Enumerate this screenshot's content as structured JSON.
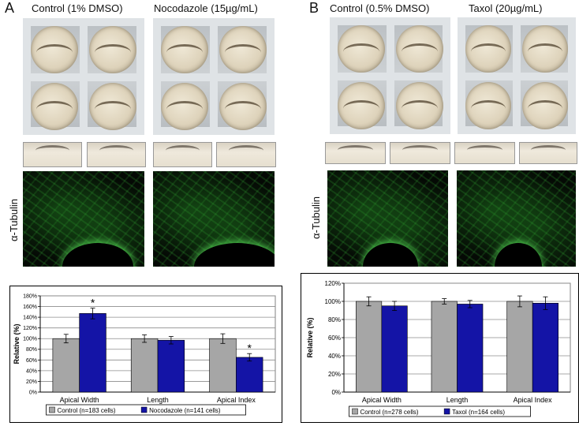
{
  "panels": [
    {
      "letter": "A",
      "conditions": [
        "Control (1% DMSO)",
        "Nocodazole (15µg/mL)"
      ],
      "stain_label": "α-Tubulin"
    },
    {
      "letter": "B",
      "conditions": [
        "Control (0.5% DMSO)",
        "Taxol (20µg/mL)"
      ],
      "stain_label": "α-Tubulin"
    }
  ],
  "chart_data": [
    {
      "type": "bar",
      "categories": [
        "Apical Width",
        "Length",
        "Apical Index"
      ],
      "series": [
        {
          "name": "Control (n=183 cells)",
          "values": [
            100,
            100,
            100
          ],
          "errors": [
            8,
            7,
            9
          ],
          "color": "#a6a6a6"
        },
        {
          "name": "Nocodazole (n=141 cells)",
          "values": [
            147,
            97,
            65
          ],
          "errors": [
            10,
            7,
            7
          ],
          "color": "#1414a6"
        }
      ],
      "significance": [
        "*",
        "",
        "*"
      ],
      "significance_series": 1,
      "ylabel": "Relative (%)",
      "ylim": [
        0,
        180
      ],
      "yticks": [
        "0%",
        "20%",
        "40%",
        "60%",
        "80%",
        "100%",
        "120%",
        "140%",
        "160%",
        "180%"
      ],
      "grid": true,
      "legend": "bottom"
    },
    {
      "type": "bar",
      "categories": [
        "Apical Width",
        "Length",
        "Apical Index"
      ],
      "series": [
        {
          "name": "Control (n=278 cells)",
          "values": [
            100,
            100,
            100
          ],
          "errors": [
            5,
            3,
            6
          ],
          "color": "#a6a6a6"
        },
        {
          "name": "Taxol (n=164 cells)",
          "values": [
            95,
            97,
            98
          ],
          "errors": [
            5,
            4,
            7
          ],
          "color": "#1414a6"
        }
      ],
      "significance": [
        "",
        "",
        ""
      ],
      "significance_series": 1,
      "ylabel": "Relative (%)",
      "ylim": [
        0,
        120
      ],
      "yticks": [
        "0%",
        "20%",
        "40%",
        "60%",
        "80%",
        "100%",
        "120%"
      ],
      "grid": true,
      "legend": "bottom"
    }
  ]
}
